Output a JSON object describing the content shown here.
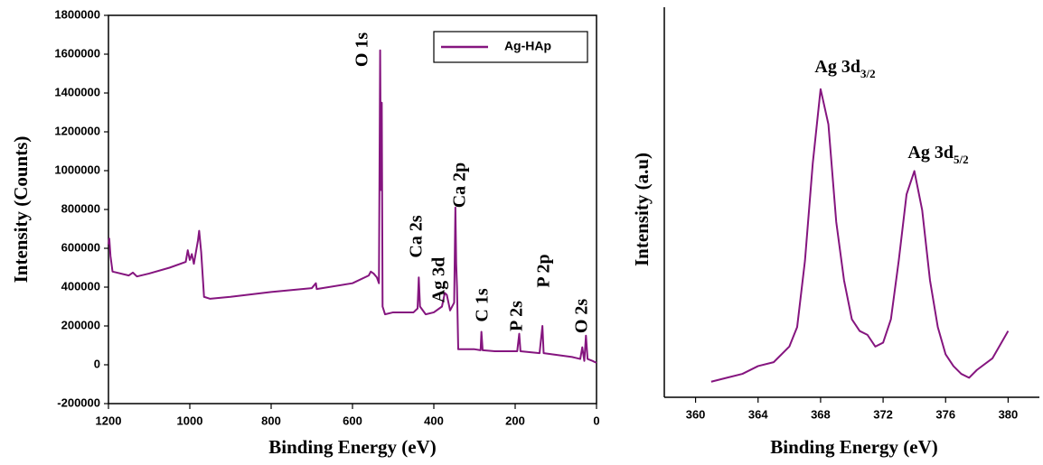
{
  "chart_data": [
    {
      "type": "line",
      "ylabel": "Intensity (Counts)",
      "xlabel": "Binding Energy (eV)",
      "xlim": [
        1200,
        0
      ],
      "xticks": [
        1200,
        1000,
        800,
        600,
        400,
        200,
        0
      ],
      "ylim": [
        -200000,
        1800000
      ],
      "yticks": [
        -200000,
        0,
        200000,
        400000,
        600000,
        800000,
        1000000,
        1200000,
        1400000,
        1600000,
        1800000
      ],
      "legend": "upper right",
      "x": [
        1200,
        1198,
        1195,
        1190,
        1150,
        1140,
        1130,
        1100,
        1050,
        1010,
        1005,
        1000,
        995,
        990,
        980,
        977,
        972,
        965,
        950,
        900,
        800,
        700,
        690,
        688,
        600,
        560,
        555,
        548,
        540,
        535,
        532,
        530,
        528,
        526,
        520,
        500,
        450,
        440,
        437,
        434,
        420,
        400,
        380,
        373,
        368,
        360,
        350,
        347,
        345,
        343,
        340,
        300,
        285,
        283,
        280,
        250,
        195,
        190,
        187,
        140,
        133,
        130,
        60,
        40,
        35,
        30,
        26,
        22,
        10,
        0
      ],
      "series": [
        {
          "name": "Ag-HAp",
          "color": "#85157f",
          "values": [
            620000,
            650000,
            560000,
            480000,
            460000,
            475000,
            455000,
            470000,
            500000,
            530000,
            590000,
            540000,
            570000,
            520000,
            640000,
            690000,
            580000,
            350000,
            340000,
            350000,
            375000,
            395000,
            420000,
            390000,
            420000,
            460000,
            480000,
            470000,
            450000,
            420000,
            1620000,
            900000,
            1350000,
            300000,
            260000,
            270000,
            270000,
            290000,
            450000,
            300000,
            260000,
            270000,
            300000,
            370000,
            360000,
            280000,
            320000,
            810000,
            520000,
            400000,
            80000,
            80000,
            75000,
            170000,
            75000,
            70000,
            70000,
            160000,
            70000,
            60000,
            200000,
            60000,
            40000,
            30000,
            90000,
            20000,
            150000,
            30000,
            20000,
            10000
          ]
        }
      ],
      "annotations": [
        "O 1s",
        "Ca 2s",
        "Ag 3d",
        "Ca 2p",
        "C 1s",
        "P 2s",
        "P 2p",
        "O 2s"
      ]
    },
    {
      "type": "line",
      "ylabel": "Intensity (a.u)",
      "xlabel": "Binding Energy (eV)",
      "xlim": [
        358,
        382
      ],
      "xticks": [
        360,
        364,
        368,
        372,
        376,
        380
      ],
      "ylim": [
        0,
        100
      ],
      "color": "#85157f",
      "x": [
        361,
        362,
        363,
        364,
        365,
        366,
        366.5,
        367,
        367.5,
        368,
        368.5,
        369,
        369.5,
        370,
        370.5,
        371,
        371.5,
        372,
        372.5,
        373,
        373.5,
        374,
        374.5,
        375,
        375.5,
        376,
        376.5,
        377,
        377.5,
        378,
        379,
        380
      ],
      "values": [
        4,
        5,
        6,
        8,
        9,
        13,
        18,
        35,
        60,
        79,
        70,
        45,
        30,
        20,
        17,
        16,
        13,
        14,
        20,
        35,
        52,
        58,
        48,
        30,
        18,
        11,
        8,
        6,
        5,
        7,
        10,
        17
      ],
      "annotations": [
        {
          "text": "Ag 3d",
          "sub": "3/2"
        },
        {
          "text": "Ag 3d",
          "sub": "5/2"
        }
      ]
    }
  ]
}
